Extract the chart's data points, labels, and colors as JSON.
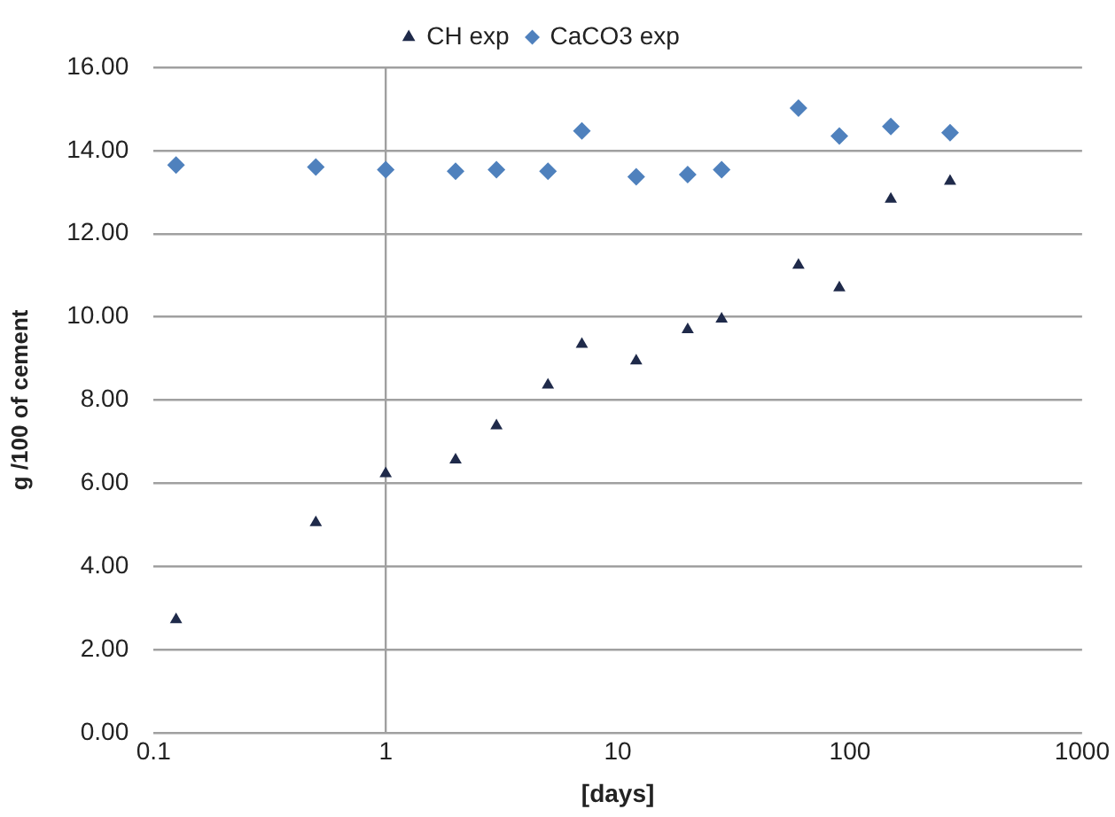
{
  "chart_data": {
    "type": "scatter",
    "xlabel": "[days]",
    "ylabel": "g /100 of cement",
    "x": [
      0.125,
      0.5,
      1,
      2,
      3,
      5,
      7,
      12,
      20,
      28,
      60,
      90,
      150,
      270
    ],
    "series": [
      {
        "name": "CH exp",
        "color": "#1f2a4a",
        "marker": "triangle",
        "values": [
          2.72,
          5.05,
          6.23,
          6.56,
          7.38,
          8.36,
          9.34,
          8.94,
          9.69,
          9.95,
          11.24,
          10.7,
          12.83,
          13.26
        ]
      },
      {
        "name": "CaCO3 exp",
        "color": "#4f81bd",
        "marker": "diamond",
        "values": [
          13.65,
          13.6,
          13.54,
          13.5,
          13.54,
          13.5,
          14.47,
          13.37,
          13.42,
          13.54,
          15.02,
          14.35,
          14.58,
          14.43
        ]
      }
    ],
    "log": "x",
    "xlim": [
      0.1,
      1000
    ],
    "xticks": [
      0.1,
      1,
      10,
      100,
      1000
    ],
    "ylim": [
      0,
      16
    ],
    "yticks": [
      {
        "value": 0,
        "label": "0.00"
      },
      {
        "value": 2,
        "label": "2.00"
      },
      {
        "value": 4,
        "label": "4.00"
      },
      {
        "value": 6,
        "label": "6.00"
      },
      {
        "value": 8,
        "label": "8.00"
      },
      {
        "value": 10,
        "label": "10.00"
      },
      {
        "value": 12,
        "label": "12.00"
      },
      {
        "value": 14,
        "label": "14.00"
      },
      {
        "value": 16,
        "label": "16.00"
      }
    ],
    "ref_lines": [
      {
        "axis": "x",
        "value": 1,
        "color": "#a0a0a0"
      }
    ],
    "grid": "y",
    "legend": "top"
  }
}
